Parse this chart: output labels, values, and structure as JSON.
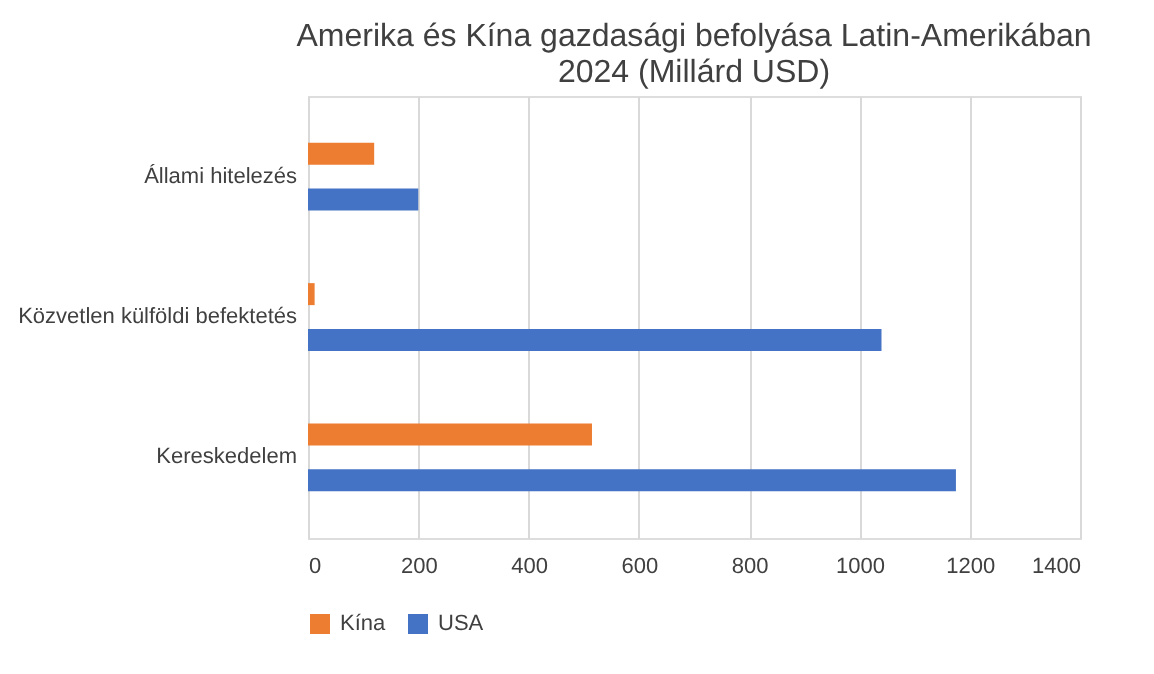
{
  "chart_data": {
    "type": "bar",
    "orientation": "horizontal",
    "title": [
      "Amerika és Kína gazdasági befolyása Latin-Amerikában",
      "2024 (Millárd USD)"
    ],
    "categories": [
      "Állami hitelezés",
      "Közvetlen külföldi befektetés",
      "Kereskedelem"
    ],
    "series": [
      {
        "name": "Kína",
        "color": "#ed7d31",
        "values": [
          120,
          12,
          515
        ]
      },
      {
        "name": "USA",
        "color": "#4472c4",
        "values": [
          200,
          1040,
          1175
        ]
      }
    ],
    "xlim": [
      0,
      1400
    ],
    "xticks": [
      0,
      200,
      400,
      600,
      800,
      1000,
      1200,
      1400
    ],
    "grid": "x",
    "legend": "bottom"
  }
}
